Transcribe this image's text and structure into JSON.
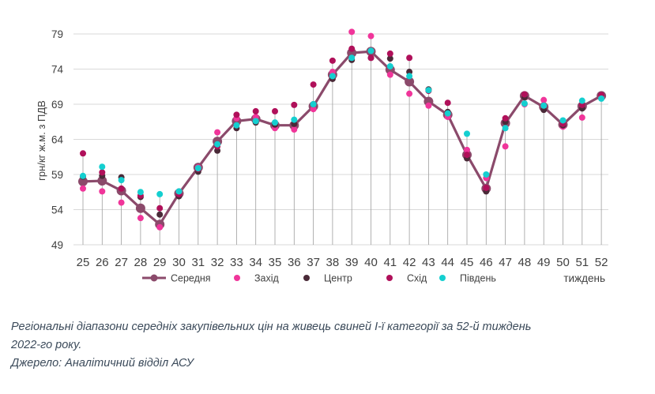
{
  "chart_data": {
    "type": "line",
    "title": "",
    "ylabel": "грн/кг ж.м. з ПДВ",
    "xlabel": "тиждень",
    "ylim": [
      49,
      79
    ],
    "yticks": [
      49,
      54,
      59,
      64,
      69,
      74,
      79
    ],
    "categories": [
      "25",
      "26",
      "27",
      "28",
      "29",
      "30",
      "31",
      "32",
      "33",
      "34",
      "35",
      "36",
      "37",
      "38",
      "39",
      "40",
      "41",
      "42",
      "43",
      "44",
      "45",
      "46",
      "47",
      "48",
      "49",
      "50",
      "51",
      "52"
    ],
    "series": [
      {
        "name": "Середня",
        "color": "#8b4a6b",
        "values": [
          58.0,
          58.1,
          56.7,
          54.2,
          51.9,
          56.3,
          60.0,
          63.7,
          66.6,
          66.9,
          66.0,
          66.0,
          68.7,
          73.2,
          76.3,
          76.5,
          73.9,
          72.2,
          69.4,
          67.5,
          61.8,
          57.0,
          66.3,
          70.2,
          68.6,
          66.1,
          68.7,
          70.2
        ]
      },
      {
        "name": "Захід",
        "color": "#f0359a",
        "values": [
          57.0,
          56.6,
          55.0,
          52.8,
          51.5,
          56.6,
          60.0,
          65.0,
          67.0,
          67.2,
          65.6,
          65.4,
          68.3,
          73.6,
          79.3,
          78.7,
          73.2,
          70.5,
          68.8,
          67.2,
          62.5,
          58.5,
          63.0,
          69.0,
          69.6,
          65.8,
          67.1,
          70.1
        ]
      },
      {
        "name": "Центр",
        "color": "#4a2a38",
        "values": [
          58.7,
          58.8,
          58.6,
          55.8,
          53.3,
          55.9,
          59.4,
          62.4,
          65.6,
          66.4,
          66.1,
          66.2,
          69.0,
          72.6,
          75.3,
          75.6,
          75.5,
          73.6,
          71.1,
          67.9,
          61.3,
          56.6,
          66.5,
          70.0,
          68.2,
          66.0,
          68.4,
          70.3
        ]
      },
      {
        "name": "Схід",
        "color": "#b0105a",
        "values": [
          62.0,
          59.3,
          57.0,
          56.0,
          54.2,
          56.2,
          59.8,
          63.0,
          67.5,
          68.0,
          68.0,
          68.9,
          71.8,
          75.2,
          76.9,
          75.6,
          76.2,
          75.6,
          70.9,
          69.2,
          61.8,
          57.1,
          67.0,
          70.4,
          68.8,
          66.2,
          68.9,
          70.3
        ]
      },
      {
        "name": "Південь",
        "color": "#14cfd0",
        "values": [
          58.8,
          60.1,
          58.2,
          56.5,
          56.2,
          56.6,
          59.9,
          63.3,
          66.0,
          66.6,
          66.4,
          66.8,
          69.0,
          73.0,
          75.6,
          76.6,
          74.4,
          73.0,
          71.0,
          67.7,
          64.8,
          59.0,
          65.6,
          69.1,
          68.8,
          66.7,
          69.5,
          69.8
        ]
      }
    ],
    "legend_position": "bottom"
  },
  "caption": {
    "line1": "Регіональні діапазони середніх закупівельних цін на живець свиней І-ї категорії за 52-й тиждень",
    "line2": "2022-го року.",
    "line3": "Джерело: Аналітичний відділ АСУ"
  }
}
